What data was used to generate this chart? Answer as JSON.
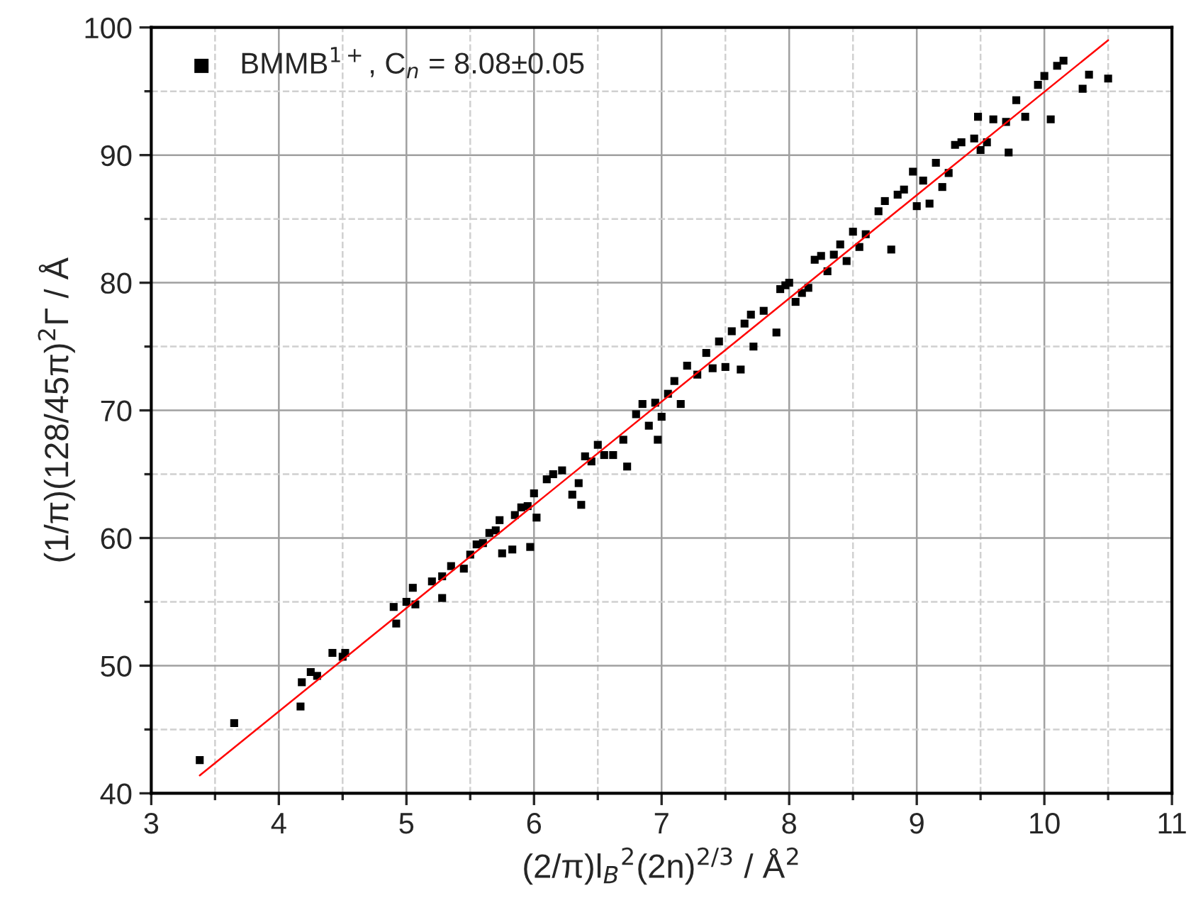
{
  "chart_data": {
    "type": "scatter",
    "xlabel": "(2/π)l$_{B}$$^{2}$(2n)$^{2/3}$ / Å$^{2}$",
    "ylabel": "(1/π)(128/45π)$^{2}$Γ / Å",
    "xlim": [
      3,
      11
    ],
    "ylim": [
      40,
      100
    ],
    "xticks": [
      3,
      {
        "value": 3.5,
        "label": null
      },
      4,
      {
        "value": 4.5,
        "label": null
      },
      5,
      {
        "value": 5.5,
        "label": null
      },
      6,
      {
        "value": 6.5,
        "label": null
      },
      7,
      {
        "value": 7.5,
        "label": null
      },
      8,
      {
        "value": 8.5,
        "label": null
      },
      9,
      {
        "value": 9.5,
        "label": null
      },
      10,
      {
        "value": 10.5,
        "label": null
      },
      11
    ],
    "yticks": [
      40,
      {
        "value": 45,
        "label": null
      },
      50,
      {
        "value": 55,
        "label": null
      },
      60,
      {
        "value": 65,
        "label": null
      },
      70,
      {
        "value": 75,
        "label": null
      },
      80,
      {
        "value": 85,
        "label": null
      },
      90,
      {
        "value": 95,
        "label": null
      },
      100
    ],
    "grid": true,
    "legend": "top left",
    "marker": "square",
    "series": [
      {
        "name": "BMMB$^{1+}$, C$_{n}$ = 8.08±0.05",
        "color": "#000000",
        "x": [
          3.38,
          3.65,
          4.17,
          4.18,
          4.25,
          4.3,
          4.42,
          4.5,
          4.52,
          4.9,
          4.92,
          5.0,
          5.05,
          5.07,
          5.2,
          5.28,
          5.28,
          5.35,
          5.45,
          5.5,
          5.55,
          5.6,
          5.65,
          5.7,
          5.73,
          5.75,
          5.83,
          5.85,
          5.9,
          5.95,
          5.97,
          6.0,
          6.02,
          6.1,
          6.15,
          6.22,
          6.3,
          6.35,
          6.37,
          6.4,
          6.45,
          6.5,
          6.55,
          6.62,
          6.7,
          6.73,
          6.8,
          6.85,
          6.9,
          6.95,
          6.97,
          7.0,
          7.05,
          7.1,
          7.15,
          7.2,
          7.28,
          7.35,
          7.4,
          7.45,
          7.5,
          7.55,
          7.62,
          7.65,
          7.7,
          7.72,
          7.8,
          7.9,
          7.93,
          7.97,
          8.0,
          8.05,
          8.1,
          8.15,
          8.2,
          8.25,
          8.3,
          8.35,
          8.4,
          8.45,
          8.5,
          8.55,
          8.6,
          8.7,
          8.75,
          8.8,
          8.85,
          8.9,
          8.97,
          9.0,
          9.05,
          9.1,
          9.15,
          9.2,
          9.25,
          9.3,
          9.35,
          9.45,
          9.48,
          9.5,
          9.55,
          9.6,
          9.7,
          9.72,
          9.78,
          9.85,
          9.95,
          10.0,
          10.05,
          10.1,
          10.15,
          10.3,
          10.35,
          10.5
        ],
        "values": [
          42.6,
          45.5,
          46.8,
          48.7,
          49.5,
          49.2,
          51.0,
          50.7,
          51.0,
          54.6,
          53.3,
          55.0,
          56.1,
          54.8,
          56.6,
          55.3,
          57.0,
          57.8,
          57.6,
          58.7,
          59.5,
          59.6,
          60.4,
          60.6,
          61.4,
          58.8,
          59.1,
          61.8,
          62.4,
          62.5,
          59.3,
          63.5,
          61.6,
          64.6,
          65.0,
          65.3,
          63.4,
          64.3,
          62.6,
          66.4,
          66.0,
          67.3,
          66.5,
          66.5,
          67.7,
          65.6,
          69.7,
          70.5,
          68.8,
          70.6,
          67.7,
          69.5,
          71.3,
          72.3,
          70.5,
          73.5,
          72.8,
          74.5,
          73.3,
          75.4,
          73.4,
          76.2,
          73.2,
          76.8,
          77.5,
          75.0,
          77.8,
          76.1,
          79.5,
          79.8,
          80.0,
          78.5,
          79.2,
          79.6,
          81.8,
          82.1,
          80.9,
          82.2,
          83.0,
          81.7,
          84.0,
          82.8,
          83.8,
          85.6,
          86.4,
          82.6,
          86.9,
          87.3,
          88.7,
          86.0,
          88.0,
          86.2,
          89.4,
          87.5,
          88.6,
          90.8,
          91.0,
          91.3,
          93.0,
          90.4,
          91.0,
          92.8,
          92.6,
          90.2,
          94.3,
          93.0,
          95.5,
          96.2,
          92.8,
          97.0,
          97.4,
          95.2,
          96.3,
          96.0
        ]
      },
      {
        "type": "line",
        "color": "#ff0000",
        "marker": "none",
        "x": [
          3.38,
          10.5
        ],
        "values": [
          41.4,
          99.0
        ]
      }
    ]
  }
}
